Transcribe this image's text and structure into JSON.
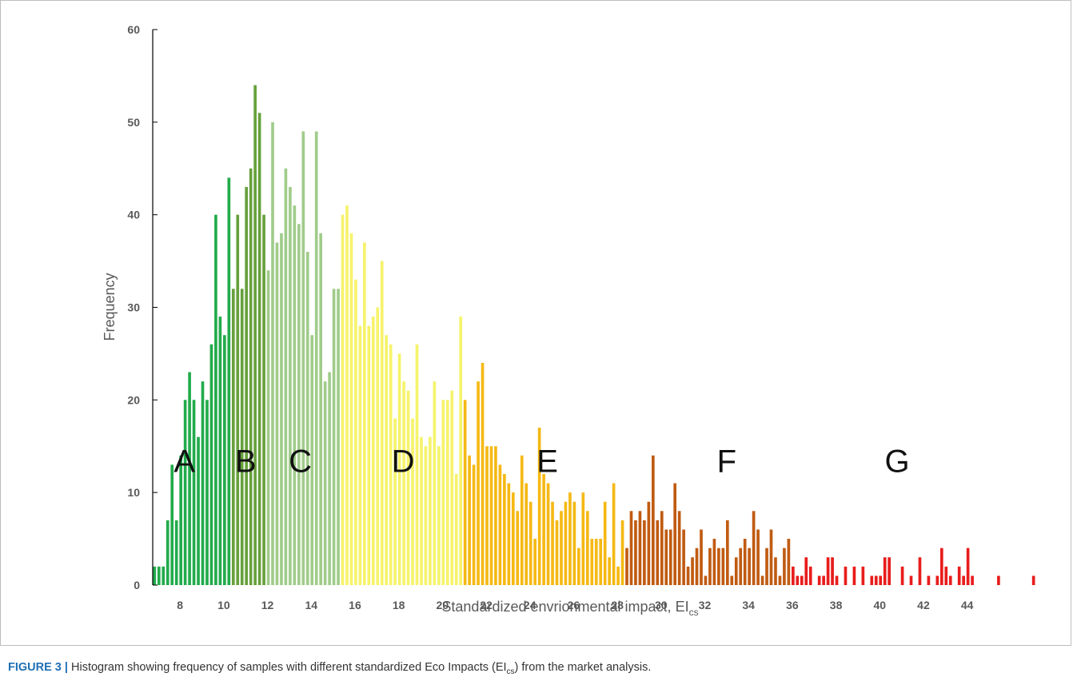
{
  "figure": {
    "caption_label": "FIGURE 3 |",
    "caption_text_1": " Histogram showing frequency of samples with different standardized Eco Impacts (EI",
    "caption_sub": "cs",
    "caption_text_2": ") from the market analysis."
  },
  "chart_data": {
    "type": "bar",
    "title": "",
    "xlabel": "Standardized envrionmental impact, EI",
    "xlabel_sub": "cs",
    "ylabel": "Frequency",
    "ylim": [
      0,
      60
    ],
    "xlim": [
      6.75,
      45
    ],
    "yticks": [
      0,
      10,
      20,
      30,
      40,
      50,
      60
    ],
    "xticks": [
      8,
      10,
      12,
      14,
      16,
      18,
      20,
      22,
      24,
      26,
      28,
      30,
      32,
      34,
      36,
      38,
      40,
      42,
      44
    ],
    "grid": false,
    "legend": "none",
    "bin_start": 6.75,
    "bin_width": 0.2,
    "series": [
      {
        "label": "A",
        "color": "#22ab4b",
        "start_bin": 0,
        "values": [
          2,
          2,
          2,
          7,
          13,
          7,
          14,
          20,
          23,
          20,
          16,
          22,
          20,
          26,
          40,
          29,
          27,
          44
        ]
      },
      {
        "label": "B",
        "color": "#66a03c",
        "start_bin": 18,
        "values": [
          32,
          40,
          32,
          43,
          45,
          54,
          51,
          40
        ]
      },
      {
        "label": "C",
        "color": "#a0cc8a",
        "start_bin": 26,
        "values": [
          34,
          50,
          37,
          38,
          45,
          43,
          41,
          39,
          49,
          36,
          27,
          49,
          38,
          22,
          23,
          32,
          32
        ]
      },
      {
        "label": "D",
        "color": "#f6f36b",
        "start_bin": 43,
        "values": [
          40,
          41,
          38,
          33,
          28,
          37,
          28,
          29,
          30,
          35,
          27,
          26,
          18,
          25,
          22,
          21,
          18,
          26,
          16,
          15,
          16,
          22,
          15,
          20,
          20,
          21,
          12,
          29
        ]
      },
      {
        "label": "E",
        "color": "#f5b914",
        "start_bin": 71,
        "values": [
          20,
          14,
          13,
          22,
          24,
          15,
          15,
          15,
          13,
          12,
          11,
          10,
          8,
          14,
          11,
          9,
          5,
          17,
          12,
          11,
          9,
          7,
          8,
          9,
          10,
          9,
          4,
          10,
          8,
          5,
          5,
          5,
          9,
          3,
          11,
          2,
          7
        ]
      },
      {
        "label": "F",
        "color": "#c05b12",
        "start_bin": 108,
        "values": [
          4,
          8,
          7,
          8,
          7,
          9,
          14,
          7,
          8,
          6,
          6,
          11,
          8,
          6,
          2,
          3,
          4,
          6,
          1,
          4,
          5,
          4,
          4,
          7,
          1,
          3,
          4,
          5,
          4,
          8,
          6,
          1,
          4,
          6,
          3,
          1,
          4,
          5
        ]
      },
      {
        "label": "G",
        "color": "#e81c1c",
        "start_bin": 146,
        "values": [
          2,
          1,
          1,
          3,
          2,
          0,
          1,
          1,
          3,
          3,
          1,
          0,
          2,
          0,
          2,
          0,
          2,
          0,
          1,
          1,
          1,
          3,
          3,
          0,
          0,
          2,
          0,
          1,
          0,
          3,
          0,
          1,
          0,
          1,
          4,
          2,
          1,
          0,
          2,
          1,
          4,
          1,
          0,
          0,
          0,
          0,
          0,
          1,
          0,
          0,
          0,
          0,
          0,
          0,
          0,
          1
        ]
      }
    ]
  }
}
